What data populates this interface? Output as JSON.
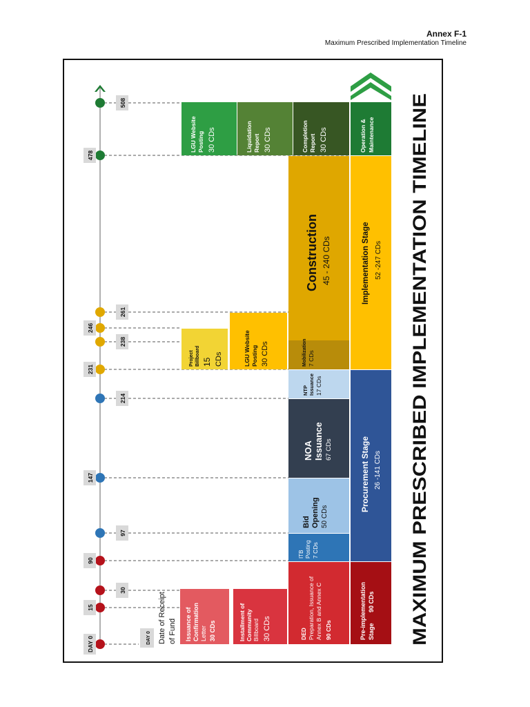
{
  "header": {
    "annex": "Annex F-1",
    "subtitle": "Maximum Prescribed Implementation Timeline"
  },
  "diagram": {
    "title": "MAXIMUM PRESCRIBED IMPLEMENTATION TIMELINE",
    "date_receipt_line1": "Date of Receipt",
    "date_receipt_line2": "of Fund",
    "day_markers": [
      {
        "label": "DAY 0",
        "color": "#b5121b"
      },
      {
        "label": "15",
        "color": "#b5121b"
      },
      {
        "label": "30",
        "color": "#b5121b"
      },
      {
        "label": "90",
        "color": "#b5121b"
      },
      {
        "label": "97",
        "color": "#2e75b6"
      },
      {
        "label": "147",
        "color": "#2e75b6"
      },
      {
        "label": "214",
        "color": "#2e75b6"
      },
      {
        "label": "231",
        "color": "#e0a800"
      },
      {
        "label": "238",
        "color": "#e0a800"
      },
      {
        "label": "246",
        "color": "#e0a800"
      },
      {
        "label": "261",
        "color": "#e0a800"
      },
      {
        "label": "478",
        "color": "#1e7b34"
      },
      {
        "label": "508",
        "color": "#1e7b34"
      }
    ],
    "day0_box": "DAY 0",
    "blocks": {
      "issuance_conf": {
        "l1": "Issuance of",
        "l2": "Confirmation",
        "l3": "Letter",
        "l4": "30 CDs"
      },
      "installment": {
        "l1": "Installment of",
        "l2": "Community",
        "l3": "Billboard",
        "l4": "30 CDs"
      },
      "ded": {
        "l1": "DED",
        "l2": "Preparation, Issuance of",
        "l3": "Annex B and Annex C",
        "l4": "90 CDs"
      },
      "pre_impl": {
        "l1": "Pre-implementation",
        "l2": "Stage",
        "l3": "90 CDs"
      },
      "itb": {
        "l1": "ITB",
        "l2": "Posting",
        "l3": "7 CDs"
      },
      "bid": {
        "l1": "Bid",
        "l2": "Opening",
        "l3": "50 CDs"
      },
      "noa": {
        "l1": "NOA",
        "l2": "Issuance",
        "l3": "67 CDs"
      },
      "ntp": {
        "l1": "NTP",
        "l2": "Issuance",
        "l3": "17 CDs"
      },
      "procurement": {
        "l1": "Procurement Stage",
        "l2": "26 -141 CDs"
      },
      "project_billboard": {
        "l1": "Project",
        "l2": "Billboard",
        "l3": "15",
        "l4": "CDs"
      },
      "lgu_posting": {
        "l1": "LGU Website",
        "l2": "Posting",
        "l3": "30 CDs"
      },
      "mobilization": {
        "l1": "Mobilization",
        "l2": "7 CDs"
      },
      "construction": {
        "l1": "Construction",
        "l2": "45 - 240 CDs"
      },
      "implementation": {
        "l1": "Implementation Stage",
        "l2": "52 -247 CDs"
      },
      "lgu_posting2": {
        "l1": "LGU Website",
        "l2": "Posting",
        "l3": "30 CDs"
      },
      "liquidation": {
        "l1": "Liquidation",
        "l2": "Report",
        "l3": "30 CDs"
      },
      "completion": {
        "l1": "Completion",
        "l2": "Report",
        "l3": "30 CDs"
      },
      "om": {
        "l1": "Operation &",
        "l2": "Maintenance"
      }
    }
  }
}
